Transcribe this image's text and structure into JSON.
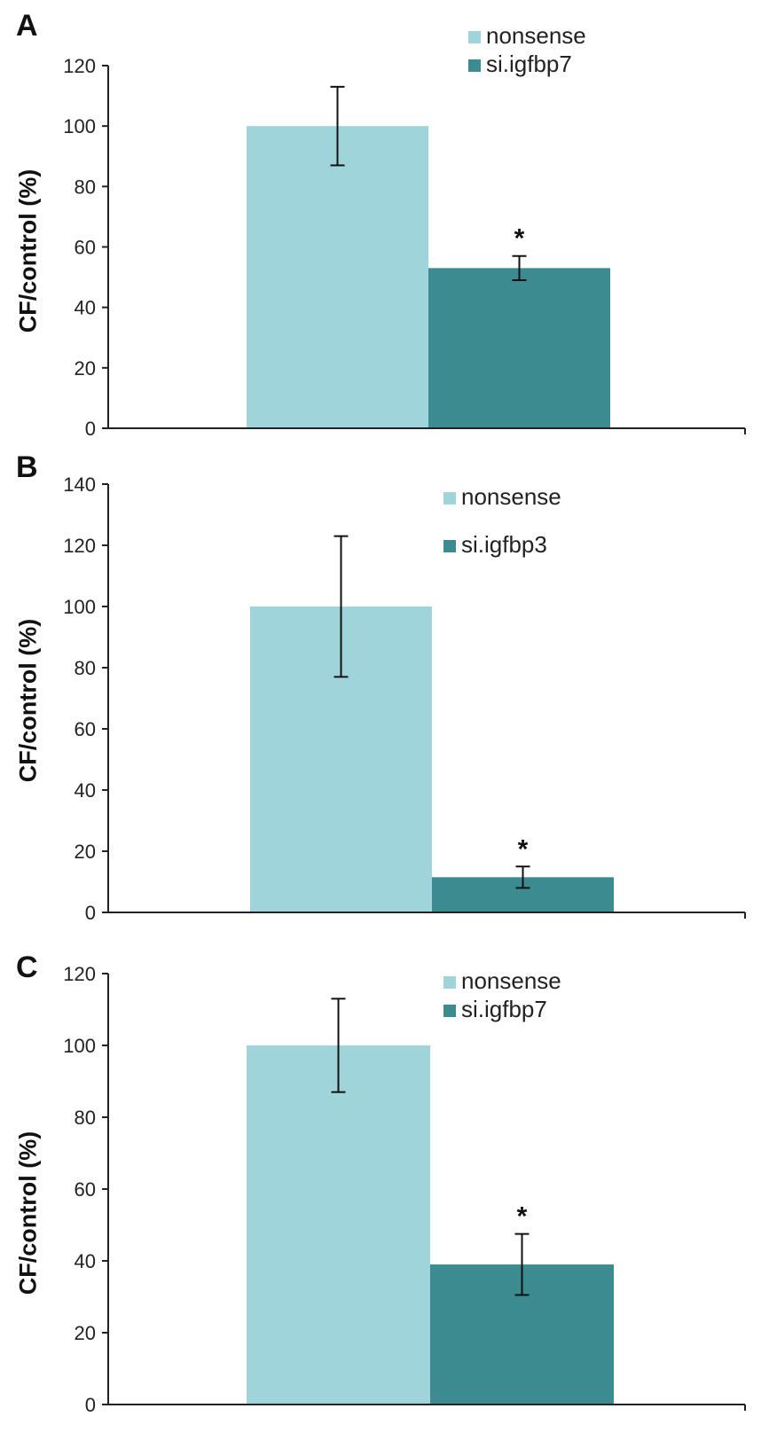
{
  "chart_data": [
    {
      "panel": "A",
      "type": "bar",
      "ylabel": "CF/control (%)",
      "ylim": [
        0,
        120
      ],
      "ticks": [
        0,
        20,
        40,
        60,
        80,
        100,
        120
      ],
      "grid": false,
      "legend_position": "top-right",
      "series": [
        {
          "name": "nonsense",
          "value": 100,
          "error": 13,
          "color": "#9fd4db",
          "significance": ""
        },
        {
          "name": "si.igfbp7",
          "value": 53,
          "error": 4,
          "color": "#3b8b90",
          "significance": "*"
        }
      ]
    },
    {
      "panel": "B",
      "type": "bar",
      "ylabel": "CF/control (%)",
      "ylim": [
        0,
        140
      ],
      "ticks": [
        0,
        20,
        40,
        60,
        80,
        100,
        120,
        140
      ],
      "grid": false,
      "legend_position": "top-right",
      "series": [
        {
          "name": "nonsense",
          "value": 100,
          "error": 23,
          "color": "#9fd4db",
          "significance": ""
        },
        {
          "name": "si.igfbp3",
          "value": 11.5,
          "error": 3.5,
          "color": "#3b8b90",
          "significance": "*"
        }
      ]
    },
    {
      "panel": "C",
      "type": "bar",
      "ylabel": "CF/control (%)",
      "ylim": [
        0,
        120
      ],
      "ticks": [
        0,
        20,
        40,
        60,
        80,
        100,
        120
      ],
      "grid": false,
      "legend_position": "top-right",
      "series": [
        {
          "name": "nonsense",
          "value": 100,
          "error": 13,
          "color": "#9fd4db",
          "significance": ""
        },
        {
          "name": "si.igfbp7",
          "value": 39,
          "error": 8.5,
          "color": "#3b8b90",
          "significance": "*"
        }
      ]
    }
  ]
}
